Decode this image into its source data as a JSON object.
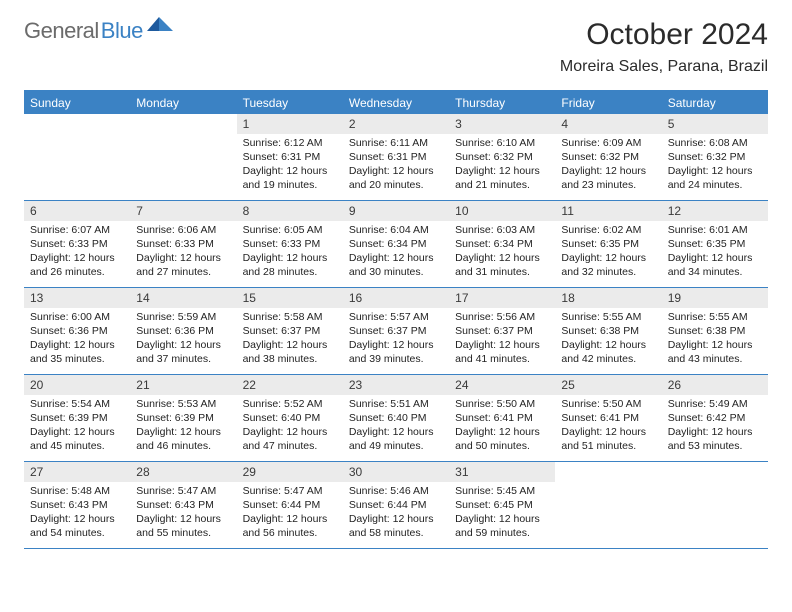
{
  "logo": {
    "text1": "General",
    "text2": "Blue"
  },
  "title": "October 2024",
  "subtitle": "Moreira Sales, Parana, Brazil",
  "colors": {
    "brand_blue": "#3b82c4",
    "header_bg": "#ebebeb",
    "text": "#232323",
    "title_text": "#2b2b2b",
    "logo_gray": "#6b6b6b"
  },
  "weekdays": [
    "Sunday",
    "Monday",
    "Tuesday",
    "Wednesday",
    "Thursday",
    "Friday",
    "Saturday"
  ],
  "weeks": [
    [
      {
        "n": "",
        "sr": "",
        "ss": "",
        "dl": ""
      },
      {
        "n": "",
        "sr": "",
        "ss": "",
        "dl": ""
      },
      {
        "n": "1",
        "sr": "Sunrise: 6:12 AM",
        "ss": "Sunset: 6:31 PM",
        "dl": "Daylight: 12 hours and 19 minutes."
      },
      {
        "n": "2",
        "sr": "Sunrise: 6:11 AM",
        "ss": "Sunset: 6:31 PM",
        "dl": "Daylight: 12 hours and 20 minutes."
      },
      {
        "n": "3",
        "sr": "Sunrise: 6:10 AM",
        "ss": "Sunset: 6:32 PM",
        "dl": "Daylight: 12 hours and 21 minutes."
      },
      {
        "n": "4",
        "sr": "Sunrise: 6:09 AM",
        "ss": "Sunset: 6:32 PM",
        "dl": "Daylight: 12 hours and 23 minutes."
      },
      {
        "n": "5",
        "sr": "Sunrise: 6:08 AM",
        "ss": "Sunset: 6:32 PM",
        "dl": "Daylight: 12 hours and 24 minutes."
      }
    ],
    [
      {
        "n": "6",
        "sr": "Sunrise: 6:07 AM",
        "ss": "Sunset: 6:33 PM",
        "dl": "Daylight: 12 hours and 26 minutes."
      },
      {
        "n": "7",
        "sr": "Sunrise: 6:06 AM",
        "ss": "Sunset: 6:33 PM",
        "dl": "Daylight: 12 hours and 27 minutes."
      },
      {
        "n": "8",
        "sr": "Sunrise: 6:05 AM",
        "ss": "Sunset: 6:33 PM",
        "dl": "Daylight: 12 hours and 28 minutes."
      },
      {
        "n": "9",
        "sr": "Sunrise: 6:04 AM",
        "ss": "Sunset: 6:34 PM",
        "dl": "Daylight: 12 hours and 30 minutes."
      },
      {
        "n": "10",
        "sr": "Sunrise: 6:03 AM",
        "ss": "Sunset: 6:34 PM",
        "dl": "Daylight: 12 hours and 31 minutes."
      },
      {
        "n": "11",
        "sr": "Sunrise: 6:02 AM",
        "ss": "Sunset: 6:35 PM",
        "dl": "Daylight: 12 hours and 32 minutes."
      },
      {
        "n": "12",
        "sr": "Sunrise: 6:01 AM",
        "ss": "Sunset: 6:35 PM",
        "dl": "Daylight: 12 hours and 34 minutes."
      }
    ],
    [
      {
        "n": "13",
        "sr": "Sunrise: 6:00 AM",
        "ss": "Sunset: 6:36 PM",
        "dl": "Daylight: 12 hours and 35 minutes."
      },
      {
        "n": "14",
        "sr": "Sunrise: 5:59 AM",
        "ss": "Sunset: 6:36 PM",
        "dl": "Daylight: 12 hours and 37 minutes."
      },
      {
        "n": "15",
        "sr": "Sunrise: 5:58 AM",
        "ss": "Sunset: 6:37 PM",
        "dl": "Daylight: 12 hours and 38 minutes."
      },
      {
        "n": "16",
        "sr": "Sunrise: 5:57 AM",
        "ss": "Sunset: 6:37 PM",
        "dl": "Daylight: 12 hours and 39 minutes."
      },
      {
        "n": "17",
        "sr": "Sunrise: 5:56 AM",
        "ss": "Sunset: 6:37 PM",
        "dl": "Daylight: 12 hours and 41 minutes."
      },
      {
        "n": "18",
        "sr": "Sunrise: 5:55 AM",
        "ss": "Sunset: 6:38 PM",
        "dl": "Daylight: 12 hours and 42 minutes."
      },
      {
        "n": "19",
        "sr": "Sunrise: 5:55 AM",
        "ss": "Sunset: 6:38 PM",
        "dl": "Daylight: 12 hours and 43 minutes."
      }
    ],
    [
      {
        "n": "20",
        "sr": "Sunrise: 5:54 AM",
        "ss": "Sunset: 6:39 PM",
        "dl": "Daylight: 12 hours and 45 minutes."
      },
      {
        "n": "21",
        "sr": "Sunrise: 5:53 AM",
        "ss": "Sunset: 6:39 PM",
        "dl": "Daylight: 12 hours and 46 minutes."
      },
      {
        "n": "22",
        "sr": "Sunrise: 5:52 AM",
        "ss": "Sunset: 6:40 PM",
        "dl": "Daylight: 12 hours and 47 minutes."
      },
      {
        "n": "23",
        "sr": "Sunrise: 5:51 AM",
        "ss": "Sunset: 6:40 PM",
        "dl": "Daylight: 12 hours and 49 minutes."
      },
      {
        "n": "24",
        "sr": "Sunrise: 5:50 AM",
        "ss": "Sunset: 6:41 PM",
        "dl": "Daylight: 12 hours and 50 minutes."
      },
      {
        "n": "25",
        "sr": "Sunrise: 5:50 AM",
        "ss": "Sunset: 6:41 PM",
        "dl": "Daylight: 12 hours and 51 minutes."
      },
      {
        "n": "26",
        "sr": "Sunrise: 5:49 AM",
        "ss": "Sunset: 6:42 PM",
        "dl": "Daylight: 12 hours and 53 minutes."
      }
    ],
    [
      {
        "n": "27",
        "sr": "Sunrise: 5:48 AM",
        "ss": "Sunset: 6:43 PM",
        "dl": "Daylight: 12 hours and 54 minutes."
      },
      {
        "n": "28",
        "sr": "Sunrise: 5:47 AM",
        "ss": "Sunset: 6:43 PM",
        "dl": "Daylight: 12 hours and 55 minutes."
      },
      {
        "n": "29",
        "sr": "Sunrise: 5:47 AM",
        "ss": "Sunset: 6:44 PM",
        "dl": "Daylight: 12 hours and 56 minutes."
      },
      {
        "n": "30",
        "sr": "Sunrise: 5:46 AM",
        "ss": "Sunset: 6:44 PM",
        "dl": "Daylight: 12 hours and 58 minutes."
      },
      {
        "n": "31",
        "sr": "Sunrise: 5:45 AM",
        "ss": "Sunset: 6:45 PM",
        "dl": "Daylight: 12 hours and 59 minutes."
      },
      {
        "n": "",
        "sr": "",
        "ss": "",
        "dl": ""
      },
      {
        "n": "",
        "sr": "",
        "ss": "",
        "dl": ""
      }
    ]
  ]
}
